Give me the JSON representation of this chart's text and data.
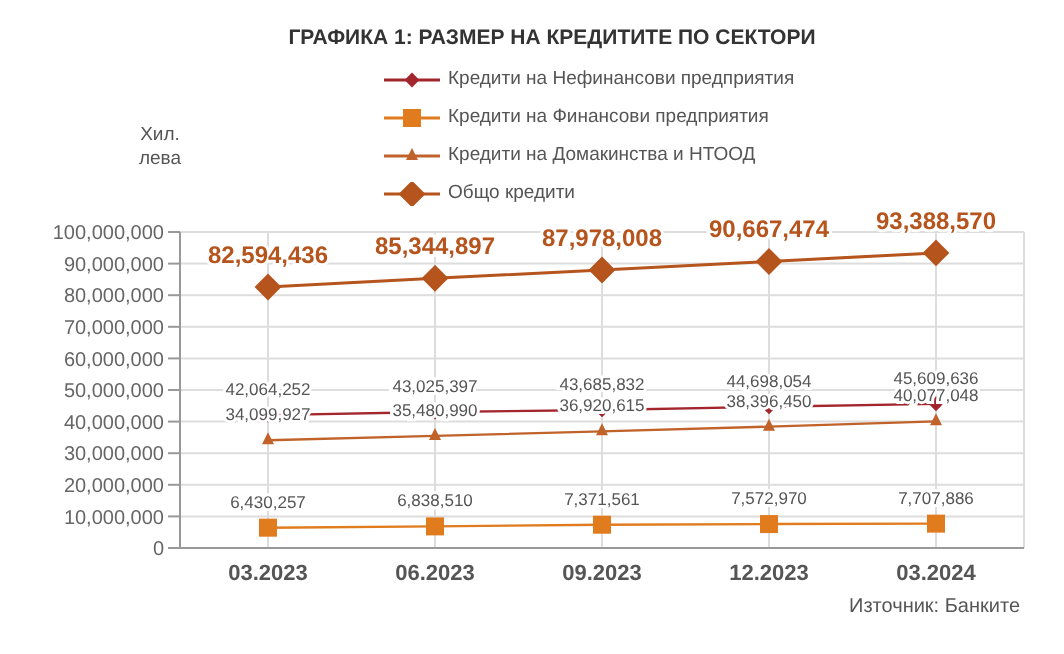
{
  "chart_data": {
    "type": "line",
    "title": "ГРАФИКА 1: РАЗМЕР НА КРЕДИТИТЕ ПО СЕКТОРИ",
    "ylabel": "Хил. лева",
    "categories": [
      "03.2023",
      "06.2023",
      "09.2023",
      "12.2023",
      "03.2024"
    ],
    "series": [
      {
        "name": "Кредити на Нефинансови предприятия",
        "color": "#a3262d",
        "marker": "diamond",
        "values": [
          42064252,
          43025397,
          43685832,
          44698054,
          45609636
        ],
        "value_labels": [
          "42,064,252",
          "43,025,397",
          "43,685,832",
          "44,698,054",
          "45,609,636"
        ]
      },
      {
        "name": "Кредити на Финансови предприятия",
        "color": "#e07b1e",
        "marker": "square",
        "values": [
          6430257,
          6838510,
          7371561,
          7572970,
          7707886
        ],
        "value_labels": [
          "6,430,257",
          "6,838,510",
          "7,371,561",
          "7,572,970",
          "7,707,886"
        ]
      },
      {
        "name": "Кредити на Домакинства и НТООД",
        "color": "#c0622a",
        "marker": "triangle",
        "values": [
          34099927,
          35480990,
          36920615,
          38396450,
          40077048
        ],
        "value_labels": [
          "34,099,927",
          "35,480,990",
          "36,920,615",
          "38,396,450",
          "40,077,048"
        ]
      },
      {
        "name": "Общо кредити",
        "color": "#b5541c",
        "marker": "diamond",
        "values": [
          82594436,
          85344897,
          87978008,
          90667474,
          93388570
        ],
        "value_labels": [
          "82,594,436",
          "85,344,897",
          "87,978,008",
          "90,667,474",
          "93,388,570"
        ]
      }
    ],
    "ylim": [
      0,
      100000000
    ],
    "yticks": [
      0,
      {
        "value": 10000000,
        "label": "10,000,000"
      },
      {
        "value": 20000000,
        "label": "20,000,000"
      },
      {
        "value": 30000000,
        "label": "30,000,000"
      },
      {
        "value": 40000000,
        "label": "40,000,000"
      },
      {
        "value": 50000000,
        "label": "50,000,000"
      },
      {
        "value": 60000000,
        "label": "60,000,000"
      },
      {
        "value": 70000000,
        "label": "70,000,000"
      },
      {
        "value": 80000000,
        "label": "80,000,000"
      },
      {
        "value": 90000000,
        "label": "90,000,000"
      },
      {
        "value": 100000000,
        "label": "100,000,000"
      }
    ],
    "grid": true,
    "legend": "top",
    "annotations": [
      "Източник: Банките"
    ]
  }
}
